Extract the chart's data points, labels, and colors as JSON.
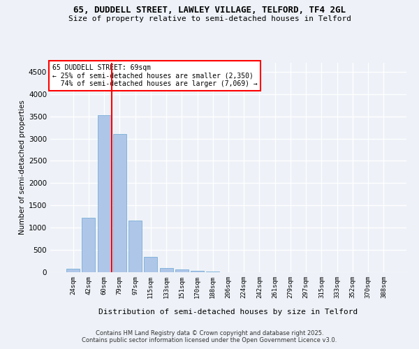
{
  "title1": "65, DUDDELL STREET, LAWLEY VILLAGE, TELFORD, TF4 2GL",
  "title2": "Size of property relative to semi-detached houses in Telford",
  "xlabel": "Distribution of semi-detached houses by size in Telford",
  "ylabel": "Number of semi-detached properties",
  "bins": [
    "24sqm",
    "42sqm",
    "60sqm",
    "79sqm",
    "97sqm",
    "115sqm",
    "133sqm",
    "151sqm",
    "170sqm",
    "188sqm",
    "206sqm",
    "224sqm",
    "242sqm",
    "261sqm",
    "279sqm",
    "297sqm",
    "315sqm",
    "333sqm",
    "352sqm",
    "370sqm",
    "388sqm"
  ],
  "values": [
    75,
    1220,
    3520,
    3100,
    1160,
    350,
    100,
    60,
    30,
    15,
    5,
    3,
    2,
    1,
    1,
    0,
    0,
    0,
    0,
    0,
    0
  ],
  "bar_color": "#aec6e8",
  "bar_edge_color": "#7aaed6",
  "property_label": "65 DUDDELL STREET: 69sqm",
  "pct_smaller": 25,
  "count_smaller": "2,350",
  "pct_larger": 74,
  "count_larger": "7,069",
  "red_line_x": 2.5,
  "ylim": [
    0,
    4700
  ],
  "yticks": [
    0,
    500,
    1000,
    1500,
    2000,
    2500,
    3000,
    3500,
    4000,
    4500
  ],
  "bg_color": "#eef2f8",
  "grid_color": "#ffffff",
  "footer1": "Contains HM Land Registry data © Crown copyright and database right 2025.",
  "footer2": "Contains public sector information licensed under the Open Government Licence v3.0."
}
